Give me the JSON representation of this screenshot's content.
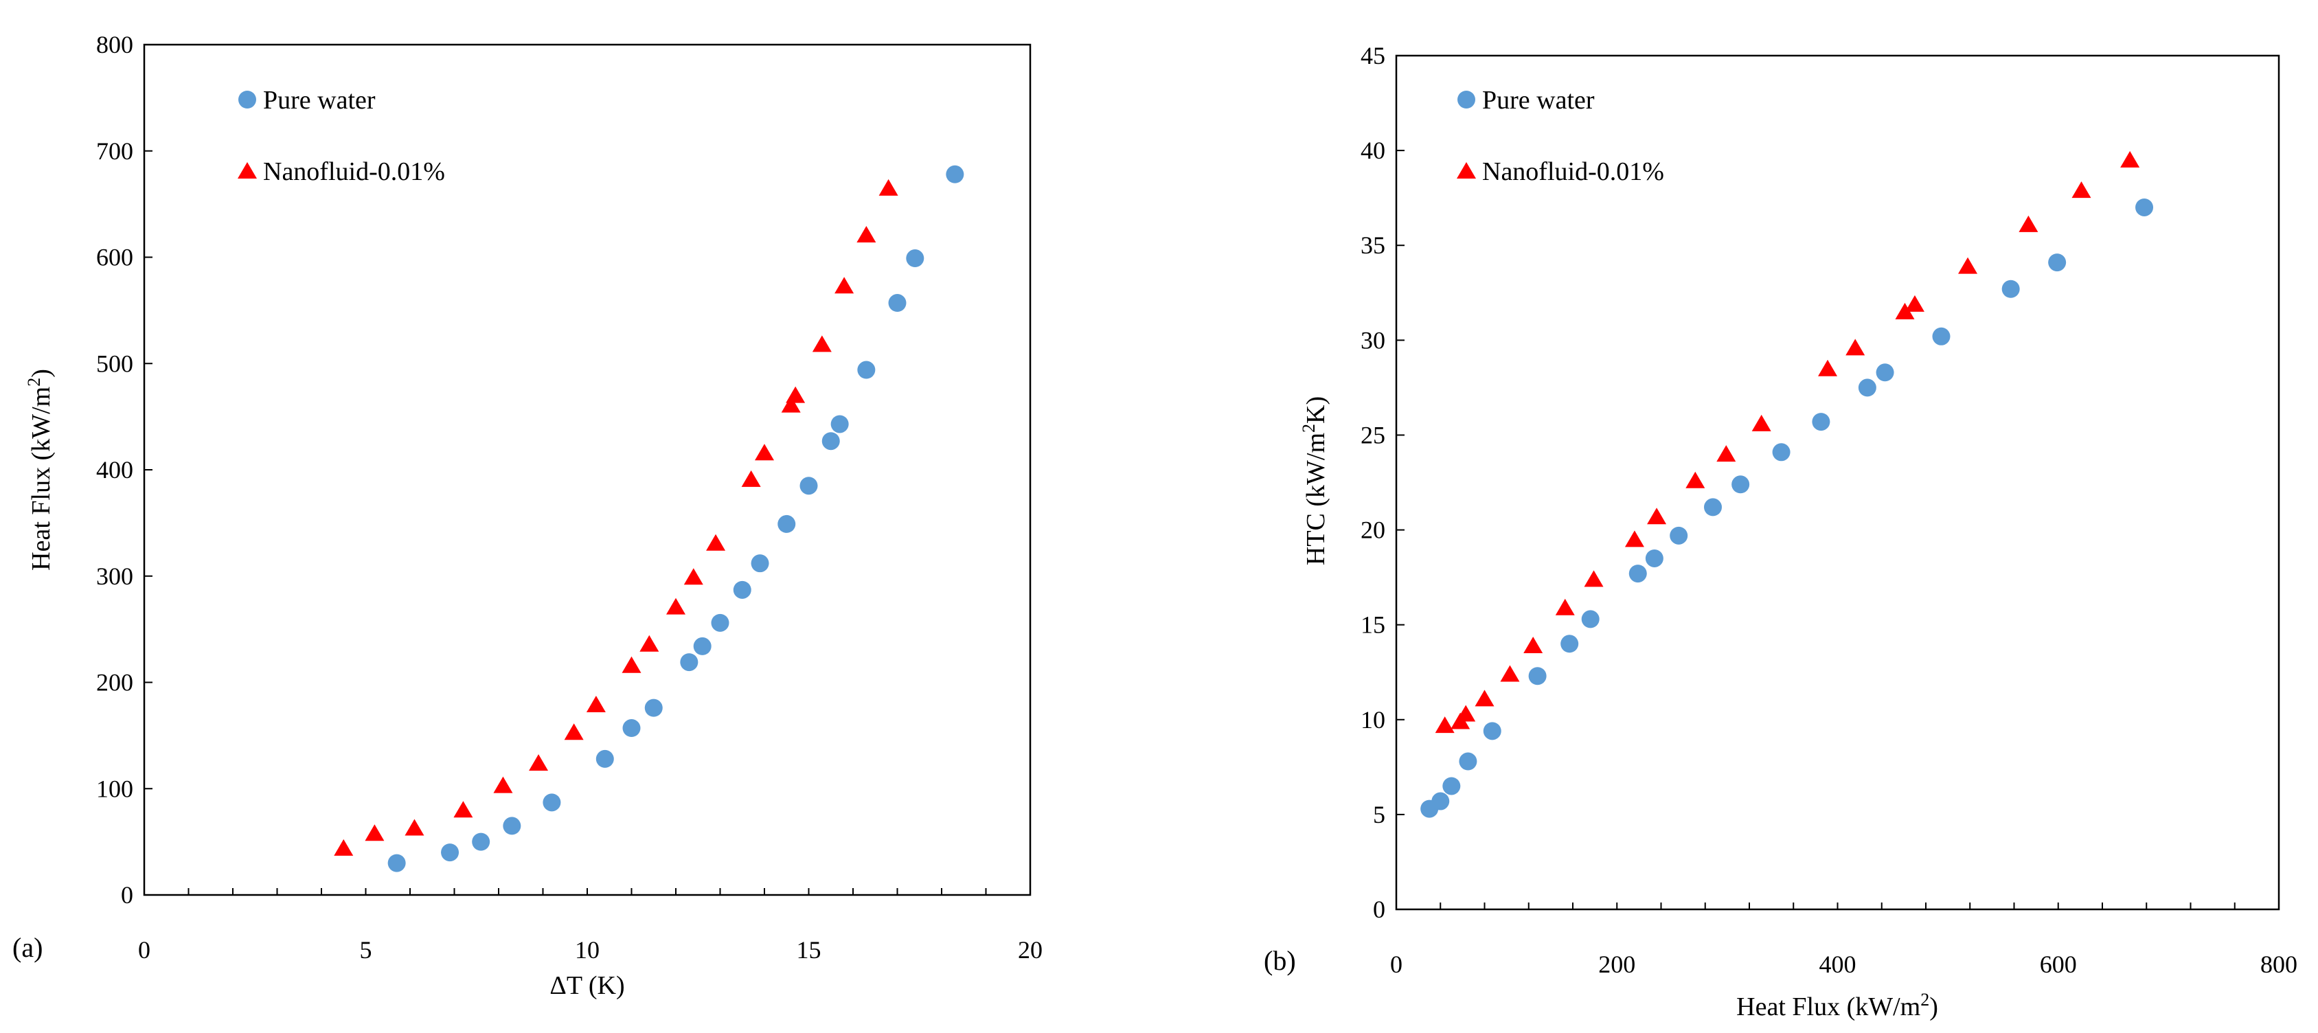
{
  "chart_data": [
    {
      "type": "scatter",
      "panel_label": "(a)",
      "title": "",
      "xlabel": "ΔT (K)",
      "ylabel": {
        "prefix": "Heat Flux (kW/m",
        "sup": "2",
        "suffix": ")"
      },
      "xlim": [
        0,
        20
      ],
      "ylim": [
        0,
        800
      ],
      "x_ticks": [
        0,
        5,
        10,
        15,
        20
      ],
      "y_ticks": [
        0,
        100,
        200,
        300,
        400,
        500,
        600,
        700,
        800
      ],
      "x_minor_step": 1,
      "grid": false,
      "legend_position": "top-left",
      "series": [
        {
          "name": "Pure water",
          "marker": "circle",
          "color": "#5B9BD5",
          "points": [
            [
              5.7,
              30
            ],
            [
              6.9,
              40
            ],
            [
              7.6,
              50
            ],
            [
              8.3,
              65
            ],
            [
              9.2,
              87
            ],
            [
              10.4,
              128
            ],
            [
              11.0,
              157
            ],
            [
              11.5,
              176
            ],
            [
              12.3,
              219
            ],
            [
              12.6,
              234
            ],
            [
              13.0,
              256
            ],
            [
              13.5,
              287
            ],
            [
              13.9,
              312
            ],
            [
              14.5,
              349
            ],
            [
              15.0,
              385
            ],
            [
              15.5,
              427
            ],
            [
              15.7,
              443
            ],
            [
              16.3,
              494
            ],
            [
              17.0,
              557
            ],
            [
              17.4,
              599
            ],
            [
              18.3,
              678
            ]
          ]
        },
        {
          "name": "Nanofluid-0.01%",
          "marker": "triangle",
          "color": "#FF0000",
          "points": [
            [
              4.5,
              44
            ],
            [
              5.2,
              58
            ],
            [
              6.1,
              63
            ],
            [
              7.2,
              80
            ],
            [
              8.1,
              103
            ],
            [
              8.9,
              124
            ],
            [
              9.7,
              153
            ],
            [
              10.2,
              179
            ],
            [
              11.0,
              216
            ],
            [
              11.4,
              236
            ],
            [
              12.0,
              271
            ],
            [
              12.4,
              299
            ],
            [
              12.9,
              331
            ],
            [
              13.7,
              391
            ],
            [
              14.0,
              416
            ],
            [
              14.6,
              461
            ],
            [
              14.7,
              470
            ],
            [
              15.3,
              518
            ],
            [
              15.8,
              573
            ],
            [
              16.3,
              621
            ],
            [
              16.8,
              665
            ]
          ]
        }
      ]
    },
    {
      "type": "scatter",
      "panel_label": "(b)",
      "title": "",
      "xlabel": {
        "prefix": "Heat Flux (kW/m",
        "sup": "2",
        "suffix": ")"
      },
      "ylabel": {
        "prefix": "HTC (kW/m",
        "sup": "2",
        "suffix": "K)"
      },
      "xlim": [
        0,
        800
      ],
      "ylim": [
        0,
        45
      ],
      "x_ticks": [
        0,
        200,
        400,
        600,
        800
      ],
      "y_ticks": [
        0,
        5,
        10,
        15,
        20,
        25,
        30,
        35,
        40,
        45
      ],
      "x_minor_step": 40,
      "grid": false,
      "legend_position": "top-left",
      "series": [
        {
          "name": "Pure water",
          "marker": "circle",
          "color": "#5B9BD5",
          "points": [
            [
              30,
              5.3
            ],
            [
              40,
              5.7
            ],
            [
              50,
              6.5
            ],
            [
              65,
              7.8
            ],
            [
              87,
              9.4
            ],
            [
              128,
              12.3
            ],
            [
              157,
              14.0
            ],
            [
              176,
              15.3
            ],
            [
              219,
              17.7
            ],
            [
              234,
              18.5
            ],
            [
              256,
              19.7
            ],
            [
              287,
              21.2
            ],
            [
              312,
              22.4
            ],
            [
              349,
              24.1
            ],
            [
              385,
              25.7
            ],
            [
              427,
              27.5
            ],
            [
              443,
              28.3
            ],
            [
              494,
              30.2
            ],
            [
              557,
              32.7
            ],
            [
              599,
              34.1
            ],
            [
              678,
              37.0
            ]
          ]
        },
        {
          "name": "Nanofluid-0.01%",
          "marker": "triangle",
          "color": "#FF0000",
          "points": [
            [
              44,
              9.7
            ],
            [
              58,
              9.9
            ],
            [
              63,
              10.3
            ],
            [
              80,
              11.1
            ],
            [
              103,
              12.4
            ],
            [
              124,
              13.9
            ],
            [
              153,
              15.9
            ],
            [
              179,
              17.4
            ],
            [
              216,
              19.5
            ],
            [
              236,
              20.7
            ],
            [
              271,
              22.6
            ],
            [
              299,
              24.0
            ],
            [
              331,
              25.6
            ],
            [
              391,
              28.5
            ],
            [
              416,
              29.6
            ],
            [
              461,
              31.5
            ],
            [
              470,
              31.9
            ],
            [
              518,
              33.9
            ],
            [
              573,
              36.1
            ],
            [
              621,
              37.9
            ],
            [
              665,
              39.5
            ]
          ]
        }
      ]
    }
  ]
}
